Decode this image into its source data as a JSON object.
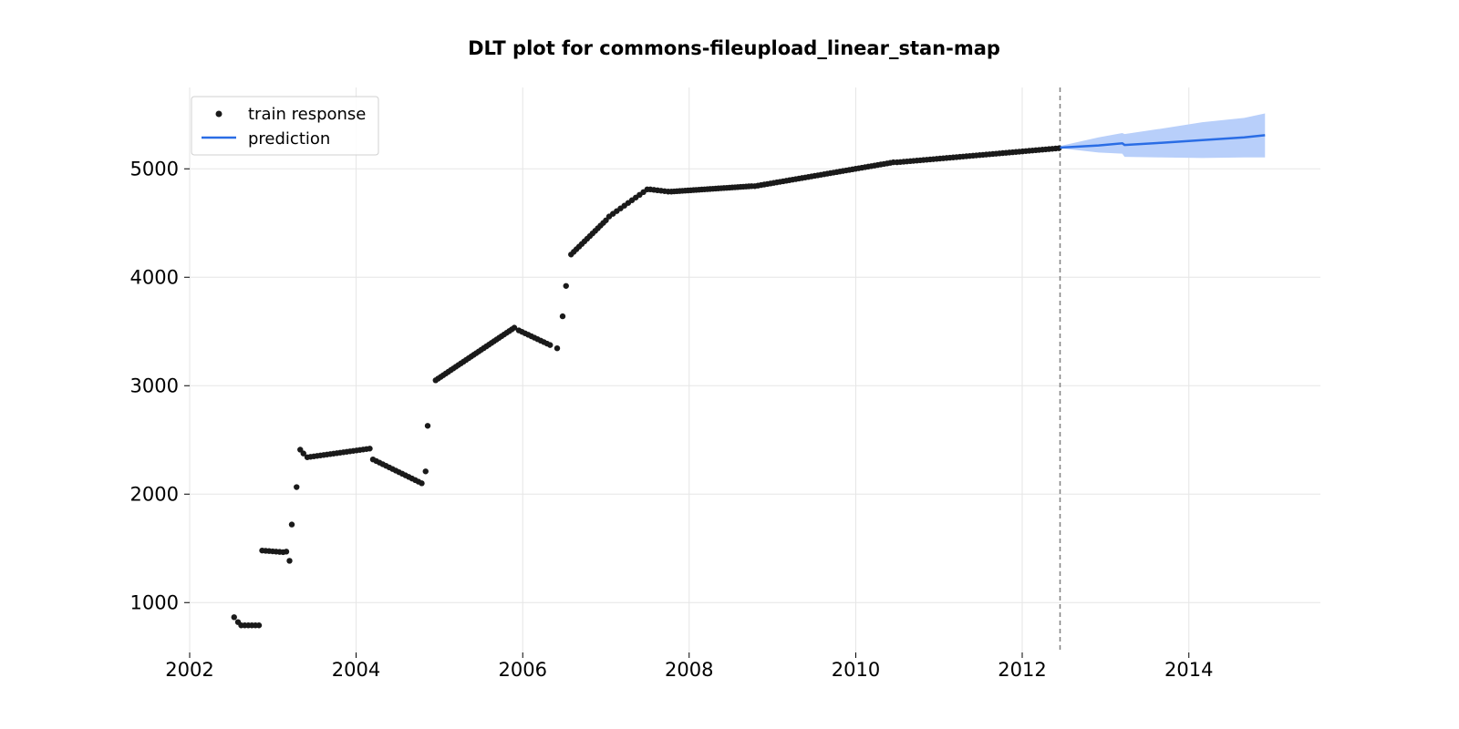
{
  "chart_data": {
    "type": "scatter",
    "title": "DLT plot for commons-fileupload_linear_stan-map",
    "xlabel": "",
    "ylabel": "",
    "xlim": [
      "2002-01-01",
      "2015-08-01"
    ],
    "ylim": [
      540,
      5750
    ],
    "x_ticks": [
      {
        "value": "2002-01-01",
        "label": "2002"
      },
      {
        "value": "2004-01-01",
        "label": "2004"
      },
      {
        "value": "2006-01-01",
        "label": "2006"
      },
      {
        "value": "2008-01-01",
        "label": "2008"
      },
      {
        "value": "2010-01-01",
        "label": "2010"
      },
      {
        "value": "2012-01-01",
        "label": "2012"
      },
      {
        "value": "2014-01-01",
        "label": "2014"
      }
    ],
    "y_ticks": [
      {
        "value": 1000,
        "label": "1000"
      },
      {
        "value": 2000,
        "label": "2000"
      },
      {
        "value": 3000,
        "label": "3000"
      },
      {
        "value": 4000,
        "label": "4000"
      },
      {
        "value": 5000,
        "label": "5000"
      }
    ],
    "grid": true,
    "legend_position": "top-left",
    "colors": {
      "train": "#1a1a1a",
      "prediction": "#2a6de5",
      "band": "#b8cffa",
      "cutoff": "#808080"
    },
    "legend": [
      {
        "label": "train response",
        "kind": "marker"
      },
      {
        "label": "prediction",
        "kind": "line"
      }
    ],
    "cutoff_date": "2012-06-15",
    "train_segments": [
      {
        "x": [
          "2002-07-15"
        ],
        "y": [
          865
        ]
      },
      {
        "x": [
          "2002-08-01"
        ],
        "y": [
          820
        ]
      },
      {
        "x": [
          "2002-08-15",
          "2002-11-01"
        ],
        "y": [
          790,
          790
        ],
        "n": 6
      },
      {
        "x": [
          "2002-11-15",
          "2003-02-15"
        ],
        "y": [
          1480,
          1465
        ],
        "n": 7
      },
      {
        "x": [
          "2003-03-01"
        ],
        "y": [
          1470
        ]
      },
      {
        "x": [
          "2003-03-15"
        ],
        "y": [
          1385
        ]
      },
      {
        "x": [
          "2003-03-25"
        ],
        "y": [
          1720
        ]
      },
      {
        "x": [
          "2003-04-15"
        ],
        "y": [
          2065
        ]
      },
      {
        "x": [
          "2003-05-01"
        ],
        "y": [
          2410
        ]
      },
      {
        "x": [
          "2003-05-15"
        ],
        "y": [
          2375
        ]
      },
      {
        "x": [
          "2003-06-01",
          "2004-03-01"
        ],
        "y": [
          2340,
          2420
        ],
        "n": 20
      },
      {
        "x": [
          "2004-03-15",
          "2004-10-15"
        ],
        "y": [
          2320,
          2100
        ],
        "n": 16
      },
      {
        "x": [
          "2004-11-01"
        ],
        "y": [
          2210
        ]
      },
      {
        "x": [
          "2004-11-10"
        ],
        "y": [
          2630
        ]
      },
      {
        "x": [
          "2004-12-15",
          "2005-11-25"
        ],
        "y": [
          3050,
          3535
        ],
        "n": 32
      },
      {
        "x": [
          "2005-12-15",
          "2006-05-01"
        ],
        "y": [
          3510,
          3375
        ],
        "n": 11
      },
      {
        "x": [
          "2006-06-01"
        ],
        "y": [
          3345
        ]
      },
      {
        "x": [
          "2006-06-25"
        ],
        "y": [
          3640
        ]
      },
      {
        "x": [
          "2006-07-10"
        ],
        "y": [
          3920
        ]
      },
      {
        "x": [
          "2006-08-01",
          "2007-01-01"
        ],
        "y": [
          4210,
          4525
        ],
        "n": 14
      },
      {
        "x": [
          "2007-01-15",
          "2007-07-01"
        ],
        "y": [
          4560,
          4810
        ],
        "n": 11
      },
      {
        "x": [
          "2007-07-15",
          "2007-10-01"
        ],
        "y": [
          4810,
          4790
        ],
        "n": 6
      },
      {
        "x": [
          "2007-10-15",
          "2008-10-01"
        ],
        "y": [
          4790,
          4840
        ],
        "n": 30
      },
      {
        "x": [
          "2008-10-15",
          "2010-06-15"
        ],
        "y": [
          4840,
          5060
        ],
        "n": 45
      },
      {
        "x": [
          "2010-07-01",
          "2012-06-10"
        ],
        "y": [
          5060,
          5190
        ],
        "n": 50
      }
    ],
    "prediction": {
      "x": [
        "2012-06-15",
        "2012-12-01",
        "2013-03-15",
        "2013-03-25",
        "2013-09-01",
        "2014-03-01",
        "2014-09-01",
        "2014-12-01"
      ],
      "y": [
        5195,
        5215,
        5235,
        5220,
        5240,
        5265,
        5290,
        5310
      ]
    },
    "prediction_band": {
      "x": [
        "2012-06-15",
        "2012-12-01",
        "2013-03-15",
        "2013-03-25",
        "2013-09-01",
        "2014-03-01",
        "2014-09-01",
        "2014-12-01"
      ],
      "lower": [
        5190,
        5150,
        5140,
        5110,
        5105,
        5100,
        5105,
        5105
      ],
      "upper": [
        5210,
        5290,
        5330,
        5320,
        5370,
        5430,
        5470,
        5510
      ]
    }
  }
}
